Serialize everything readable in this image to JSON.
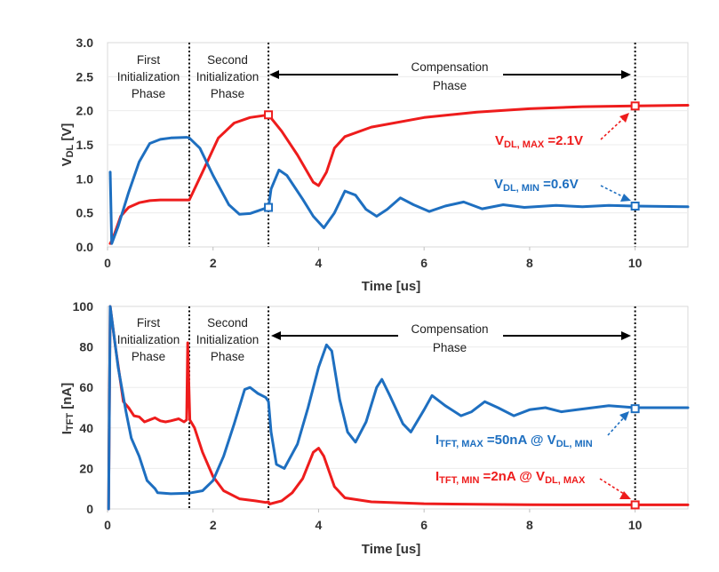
{
  "chart_data": [
    {
      "type": "line",
      "xlabel": "Time [us]",
      "ylabel_main": "V",
      "ylabel_sub": "DL",
      "ylabel_unit": " [V]",
      "xlim": [
        0,
        11
      ],
      "ylim": [
        0,
        3
      ],
      "x_ticks": [
        "0",
        "2",
        "4",
        "6",
        "8",
        "10"
      ],
      "y_ticks": [
        "0.0",
        "0.5",
        "1.0",
        "1.5",
        "2.0",
        "2.5",
        "3.0"
      ],
      "phase_boundaries": [
        1.55,
        3.05,
        10
      ],
      "phases": {
        "first": [
          "First",
          "Initialization",
          "Phase"
        ],
        "second": [
          "Second",
          "Initialization",
          "Phase"
        ],
        "compensation": [
          "Compensation",
          "Phase"
        ]
      },
      "series": [
        {
          "color": "#ee1c1c",
          "points": [
            [
              0.05,
              0.05
            ],
            [
              0.1,
              0.12
            ],
            [
              0.25,
              0.45
            ],
            [
              0.4,
              0.58
            ],
            [
              0.6,
              0.65
            ],
            [
              0.8,
              0.68
            ],
            [
              1.0,
              0.69
            ],
            [
              1.55,
              0.69
            ],
            [
              1.8,
              1.1
            ],
            [
              2.1,
              1.6
            ],
            [
              2.4,
              1.82
            ],
            [
              2.7,
              1.9
            ],
            [
              3.05,
              1.94
            ],
            [
              3.3,
              1.7
            ],
            [
              3.6,
              1.35
            ],
            [
              3.9,
              0.95
            ],
            [
              4.0,
              0.9
            ],
            [
              4.15,
              1.1
            ],
            [
              4.3,
              1.45
            ],
            [
              4.5,
              1.62
            ],
            [
              5.0,
              1.76
            ],
            [
              6.0,
              1.9
            ],
            [
              7.0,
              1.98
            ],
            [
              8.0,
              2.03
            ],
            [
              9.0,
              2.06
            ],
            [
              10.0,
              2.07
            ],
            [
              11.0,
              2.08
            ]
          ]
        },
        {
          "color": "#1e6fc0",
          "points": [
            [
              0.05,
              1.1
            ],
            [
              0.08,
              0.05
            ],
            [
              0.2,
              0.3
            ],
            [
              0.4,
              0.8
            ],
            [
              0.6,
              1.25
            ],
            [
              0.8,
              1.52
            ],
            [
              1.0,
              1.58
            ],
            [
              1.2,
              1.6
            ],
            [
              1.5,
              1.61
            ],
            [
              1.55,
              1.6
            ],
            [
              1.75,
              1.45
            ],
            [
              2.0,
              1.05
            ],
            [
              2.3,
              0.62
            ],
            [
              2.5,
              0.48
            ],
            [
              2.7,
              0.49
            ],
            [
              3.0,
              0.57
            ],
            [
              3.05,
              0.58
            ],
            [
              3.1,
              0.85
            ],
            [
              3.25,
              1.13
            ],
            [
              3.4,
              1.05
            ],
            [
              3.7,
              0.7
            ],
            [
              3.9,
              0.45
            ],
            [
              4.1,
              0.28
            ],
            [
              4.3,
              0.5
            ],
            [
              4.5,
              0.82
            ],
            [
              4.7,
              0.76
            ],
            [
              4.9,
              0.55
            ],
            [
              5.1,
              0.45
            ],
            [
              5.3,
              0.55
            ],
            [
              5.55,
              0.72
            ],
            [
              5.8,
              0.62
            ],
            [
              6.1,
              0.52
            ],
            [
              6.4,
              0.6
            ],
            [
              6.75,
              0.66
            ],
            [
              7.1,
              0.56
            ],
            [
              7.5,
              0.62
            ],
            [
              7.9,
              0.58
            ],
            [
              8.5,
              0.61
            ],
            [
              9.0,
              0.59
            ],
            [
              9.5,
              0.61
            ],
            [
              10.0,
              0.6
            ],
            [
              11.0,
              0.59
            ]
          ]
        }
      ],
      "markers": [
        {
          "x": 3.05,
          "y": 1.94,
          "color": "#ee1c1c"
        },
        {
          "x": 10,
          "y": 2.07,
          "color": "#ee1c1c"
        },
        {
          "x": 3.05,
          "y": 0.58,
          "color": "#1e6fc0"
        },
        {
          "x": 10,
          "y": 0.6,
          "color": "#1e6fc0"
        }
      ],
      "annotations": [
        {
          "main": "V",
          "sub": "DL, MAX",
          "tail": " =2.1V",
          "color": "#ee1c1c"
        },
        {
          "main": "V",
          "sub": "DL, MIN",
          "tail": " =0.6V",
          "color": "#1e6fc0"
        }
      ]
    },
    {
      "type": "line",
      "xlabel": "Time [us]",
      "ylabel_main": "I",
      "ylabel_sub": "TFT",
      "ylabel_unit": " [nA]",
      "xlim": [
        0,
        11
      ],
      "ylim": [
        0,
        100
      ],
      "x_ticks": [
        "0",
        "2",
        "4",
        "6",
        "8",
        "10"
      ],
      "y_ticks": [
        "0",
        "20",
        "40",
        "60",
        "80",
        "100"
      ],
      "phase_boundaries": [
        1.55,
        3.05,
        10
      ],
      "phases": {
        "first": [
          "First",
          "Initialization",
          "Phase"
        ],
        "second": [
          "Second",
          "Initialization",
          "Phase"
        ],
        "compensation": [
          "Compensation",
          "Phase"
        ]
      },
      "series": [
        {
          "color": "#ee1c1c",
          "points": [
            [
              0.02,
              0
            ],
            [
              0.05,
              100
            ],
            [
              0.15,
              80
            ],
            [
              0.3,
              53
            ],
            [
              0.4,
              50
            ],
            [
              0.5,
              46
            ],
            [
              0.6,
              45.5
            ],
            [
              0.7,
              43
            ],
            [
              0.8,
              44
            ],
            [
              0.9,
              45
            ],
            [
              1.0,
              43.5
            ],
            [
              1.1,
              43
            ],
            [
              1.2,
              43.5
            ],
            [
              1.35,
              44.5
            ],
            [
              1.45,
              43
            ],
            [
              1.5,
              44
            ],
            [
              1.52,
              82
            ],
            [
              1.56,
              44
            ],
            [
              1.65,
              40
            ],
            [
              1.8,
              28
            ],
            [
              2.0,
              16
            ],
            [
              2.2,
              9
            ],
            [
              2.5,
              5
            ],
            [
              2.8,
              4
            ],
            [
              3.0,
              3.2
            ],
            [
              3.05,
              3.5
            ],
            [
              3.07,
              2.4
            ],
            [
              3.3,
              4
            ],
            [
              3.5,
              8
            ],
            [
              3.7,
              15
            ],
            [
              3.9,
              28
            ],
            [
              4.0,
              30
            ],
            [
              4.1,
              26
            ],
            [
              4.3,
              11
            ],
            [
              4.5,
              5.5
            ],
            [
              5.0,
              3.5
            ],
            [
              6.0,
              2.6
            ],
            [
              7.0,
              2.3
            ],
            [
              8.0,
              2.1
            ],
            [
              9.0,
              2.0
            ],
            [
              10.0,
              2.0
            ],
            [
              11.0,
              2.0
            ]
          ]
        },
        {
          "color": "#1e6fc0",
          "points": [
            [
              0.02,
              0
            ],
            [
              0.05,
              100
            ],
            [
              0.2,
              70
            ],
            [
              0.35,
              48
            ],
            [
              0.45,
              35
            ],
            [
              0.6,
              26
            ],
            [
              0.75,
              14
            ],
            [
              0.9,
              10
            ],
            [
              0.95,
              8
            ],
            [
              1.2,
              7.5
            ],
            [
              1.55,
              7.8
            ],
            [
              1.8,
              9
            ],
            [
              2.0,
              14
            ],
            [
              2.2,
              26
            ],
            [
              2.4,
              42
            ],
            [
              2.6,
              59
            ],
            [
              2.7,
              60
            ],
            [
              2.85,
              57
            ],
            [
              3.0,
              55
            ],
            [
              3.05,
              53
            ],
            [
              3.1,
              38
            ],
            [
              3.2,
              22
            ],
            [
              3.35,
              20
            ],
            [
              3.6,
              32
            ],
            [
              3.8,
              50
            ],
            [
              4.0,
              70
            ],
            [
              4.15,
              81
            ],
            [
              4.25,
              78
            ],
            [
              4.4,
              54
            ],
            [
              4.55,
              38
            ],
            [
              4.7,
              33
            ],
            [
              4.9,
              43
            ],
            [
              5.1,
              60
            ],
            [
              5.2,
              64
            ],
            [
              5.35,
              56
            ],
            [
              5.6,
              42
            ],
            [
              5.75,
              38
            ],
            [
              6.0,
              49
            ],
            [
              6.15,
              56
            ],
            [
              6.4,
              51
            ],
            [
              6.7,
              46
            ],
            [
              6.9,
              48
            ],
            [
              7.15,
              53
            ],
            [
              7.4,
              50
            ],
            [
              7.7,
              46
            ],
            [
              8.0,
              49
            ],
            [
              8.3,
              50
            ],
            [
              8.6,
              48
            ],
            [
              8.9,
              49
            ],
            [
              9.2,
              50
            ],
            [
              9.5,
              51
            ],
            [
              10.0,
              50
            ],
            [
              11.0,
              50
            ]
          ]
        }
      ],
      "markers": [
        {
          "x": 10,
          "y": 49.5,
          "color": "#1e6fc0"
        },
        {
          "x": 10,
          "y": 2.0,
          "color": "#ee1c1c"
        }
      ],
      "annotations": [
        {
          "main": "I",
          "sub": "TFT, MAX",
          "mid": " =50nA @ V",
          "sub2": "DL, MIN",
          "color": "#1e6fc0"
        },
        {
          "main": "I",
          "sub": "TFT, MIN",
          "mid": " =2nA @ V",
          "sub2": "DL, MAX",
          "color": "#ee1c1c"
        }
      ]
    }
  ]
}
